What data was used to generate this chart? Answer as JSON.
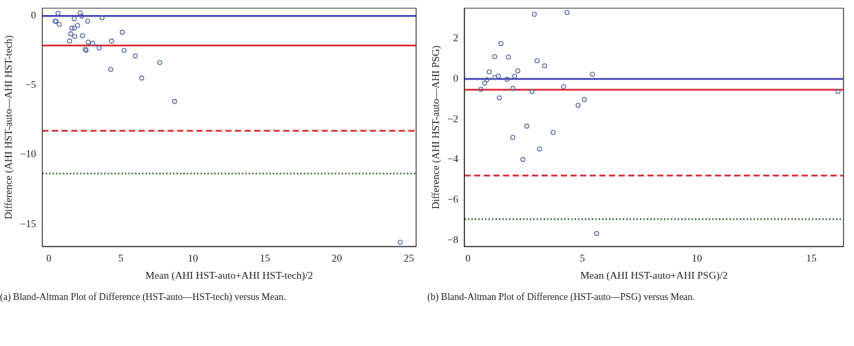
{
  "chart_data": [
    {
      "type": "scatter",
      "xlabel": "Mean (AHI HST-auto+AHI HST-tech)/2",
      "ylabel": "Difference (AHI HST-auto—AHI HST-tech)",
      "xlim": [
        -0.45,
        25.5
      ],
      "ylim": [
        -16.6,
        0.55
      ],
      "xticks": [
        0,
        5,
        10,
        15,
        20,
        25
      ],
      "yticks": [
        0,
        -5,
        -10,
        -15
      ],
      "grid": false,
      "legend": false,
      "marker": "circle",
      "series": [
        {
          "color": "#5b6ea6",
          "x": [
            0.64,
            0.45,
            0.5,
            0.73,
            1.77,
            1.6,
            1.77,
            2.0,
            1.52,
            1.8,
            1.44,
            2.18,
            2.29,
            2.7,
            2.34,
            2.74,
            3.05,
            2.54,
            2.59,
            3.5,
            3.7,
            4.36,
            5.1,
            5.23,
            4.3,
            6.0,
            6.45,
            7.7,
            8.73,
            24.4
          ],
          "values": [
            0.19,
            -0.38,
            -0.4,
            -0.61,
            -0.2,
            -0.88,
            -0.88,
            -0.69,
            -1.29,
            -1.48,
            -1.81,
            0.22,
            -0.02,
            -0.38,
            -1.42,
            -1.89,
            -1.97,
            -2.41,
            -2.48,
            -2.3,
            -0.13,
            -1.81,
            -1.18,
            -2.48,
            -3.85,
            -2.88,
            -4.48,
            -3.36,
            -6.16,
            -16.3
          ]
        }
      ],
      "ref_lines": [
        {
          "axis": "y",
          "value": 0,
          "color": "#3a3ab4",
          "line_style": "solid"
        },
        {
          "axis": "y",
          "value": -2.13,
          "color": "#d9262e",
          "line_style": "solid"
        },
        {
          "axis": "y",
          "value": -8.27,
          "color": "#d9262e",
          "line_style": "dashed"
        },
        {
          "axis": "y",
          "value": -11.35,
          "color": "#2e6b2e",
          "line_style": "dotted"
        }
      ],
      "annotations": [
        "(a) Bland-Altman Plot of Difference (HST-auto—HST-tech) versus Mean."
      ]
    },
    {
      "type": "scatter",
      "xlabel": "Mean (AHI HST-auto+AHI PSG)/2",
      "ylabel": "Difference (AHI HST-auto—AHI PSG)",
      "xlim": [
        -0.15,
        16.4
      ],
      "ylim": [
        -8.3,
        3.5
      ],
      "xticks": [
        0,
        5,
        10,
        15
      ],
      "yticks": [
        2,
        0,
        -2,
        -4,
        -6,
        -8
      ],
      "grid": false,
      "legend": false,
      "marker": "circle",
      "series": [
        {
          "color": "#5b6ea6",
          "x": [
            2.9,
            4.33,
            1.44,
            1.17,
            1.77,
            3.02,
            3.35,
            0.93,
            2.18,
            5.44,
            1.17,
            1.33,
            2.04,
            1.71,
            0.83,
            0.73,
            0.57,
            1.96,
            2.8,
            4.18,
            1.37,
            4.81,
            5.08,
            2.57,
            3.72,
            1.96,
            3.13,
            2.4,
            16.16,
            5.62
          ],
          "values": [
            3.2,
            3.29,
            1.75,
            1.1,
            1.08,
            0.9,
            0.65,
            0.35,
            0.4,
            0.23,
            0.07,
            0.13,
            0.13,
            -0.02,
            -0.04,
            -0.21,
            -0.51,
            -0.47,
            -0.63,
            -0.38,
            -0.94,
            -1.31,
            -1.02,
            -2.34,
            -2.65,
            -2.9,
            -3.47,
            -3.99,
            -0.62,
            -7.66
          ]
        }
      ],
      "ref_lines": [
        {
          "axis": "y",
          "value": 0,
          "color": "#3a3ab4",
          "line_style": "solid"
        },
        {
          "axis": "y",
          "value": -0.54,
          "color": "#d9262e",
          "line_style": "solid"
        },
        {
          "axis": "y",
          "value": -4.79,
          "color": "#d9262e",
          "line_style": "dashed"
        },
        {
          "axis": "y",
          "value": -6.95,
          "color": "#2e6b2e",
          "line_style": "dotted"
        }
      ],
      "annotations": [
        "(b) Bland-Altman Plot of Difference (HST-auto—PSG) versus Mean."
      ]
    }
  ]
}
